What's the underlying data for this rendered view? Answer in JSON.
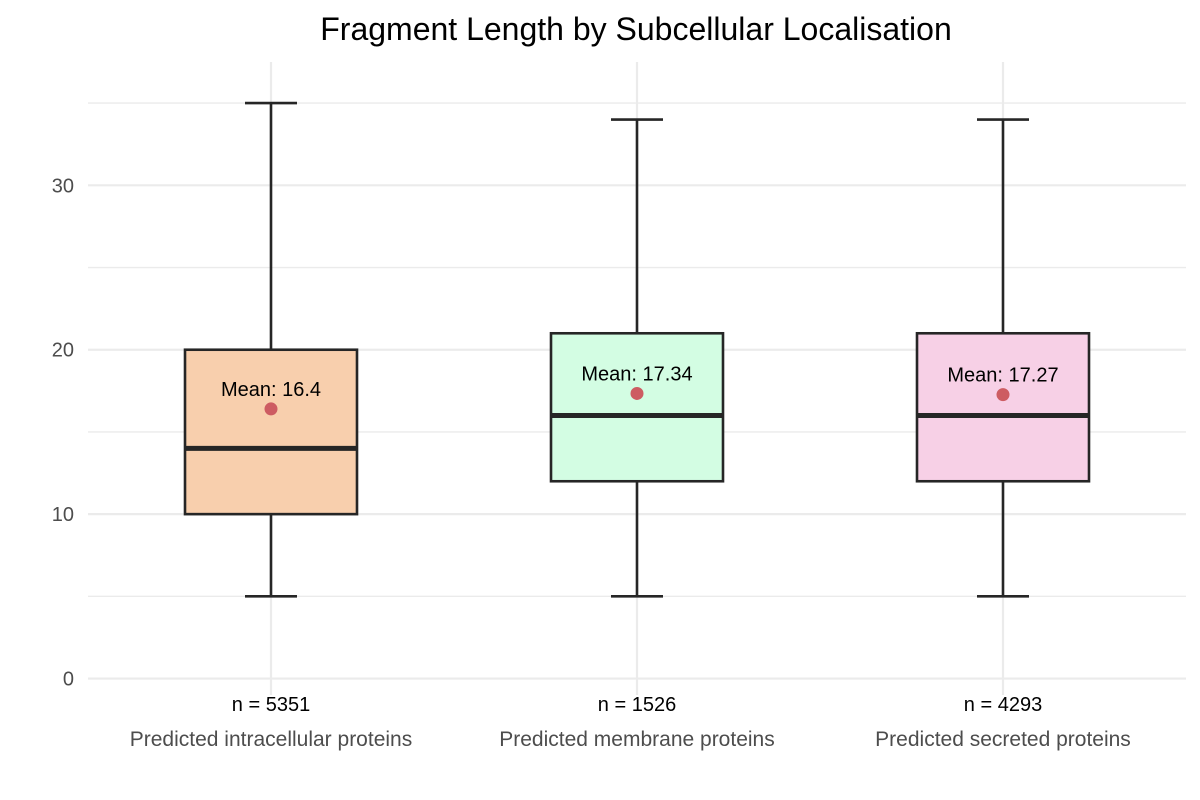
{
  "chart_data": {
    "type": "box",
    "title": "Fragment Length by Subcellular Localisation",
    "xlabel": "",
    "ylabel": "",
    "ylim": [
      -1,
      37.5
    ],
    "y_ticks": [
      0,
      10,
      20,
      30
    ],
    "y_tick_labels": [
      "0",
      "10",
      "20",
      "30"
    ],
    "y_minor_ticks": [
      5,
      15,
      25,
      35
    ],
    "grid": true,
    "legend": "none",
    "categories": [
      "Predicted intracellular proteins",
      "Predicted membrane proteins",
      "Predicted secreted proteins"
    ],
    "series": [
      {
        "category": "Predicted intracellular proteins",
        "min": 5,
        "q1": 10,
        "median": 14,
        "q3": 20,
        "max": 35,
        "mean": 16.4,
        "mean_label": "Mean: 16.4",
        "n_label": "n = 5351",
        "color": "#f8cfad"
      },
      {
        "category": "Predicted membrane proteins",
        "min": 5,
        "q1": 12,
        "median": 16,
        "q3": 21,
        "max": 34,
        "mean": 17.34,
        "mean_label": "Mean: 17.34",
        "n_label": "n = 1526",
        "color": "#d3fde3"
      },
      {
        "category": "Predicted secreted proteins",
        "min": 5,
        "q1": 12,
        "median": 16,
        "q3": 21,
        "max": 34,
        "mean": 17.27,
        "mean_label": "Mean: 17.27",
        "n_label": "n = 4293",
        "color": "#f7d0e6"
      }
    ]
  }
}
